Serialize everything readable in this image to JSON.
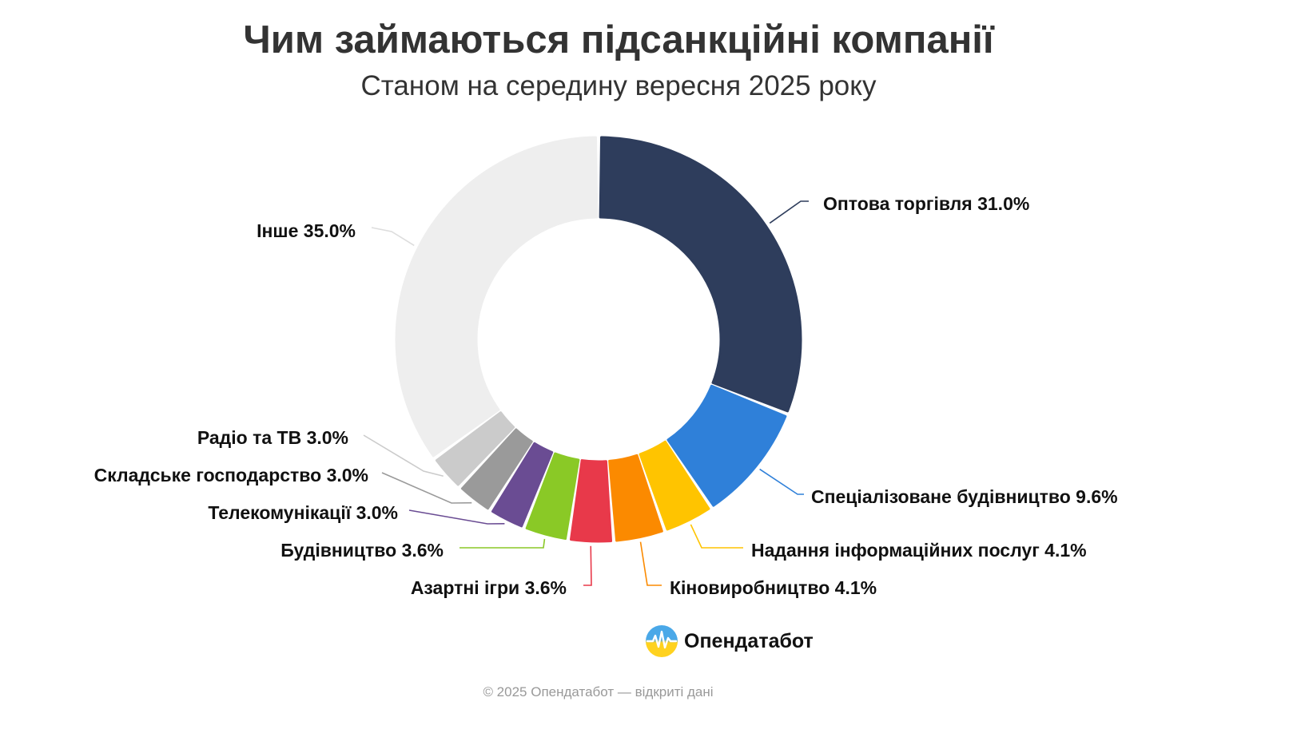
{
  "header": {
    "title": "Чим займаються підсанкційні компанії",
    "subtitle": "Станом на середину вересня 2025 року"
  },
  "chart_data": {
    "type": "pie",
    "variant": "donut",
    "title": "Чим займаються підсанкційні компанії",
    "subtitle": "Станом на середину вересня 2025 року",
    "value_unit": "%",
    "slices": [
      {
        "name": "Оптова торгівля",
        "value": 31.0,
        "label": "Оптова торгівля 31.0%",
        "color": "#2e3d5c",
        "label_side": "right"
      },
      {
        "name": "Спеціалізоване будівництво",
        "value": 9.6,
        "label": "Спеціалізоване будівництво 9.6%",
        "color": "#2f80d9",
        "label_side": "right"
      },
      {
        "name": "Надання інформаційних послуг",
        "value": 4.1,
        "label": "Надання інформаційних послуг 4.1%",
        "color": "#ffc400",
        "label_side": "right"
      },
      {
        "name": "Кіновиробництво",
        "value": 4.1,
        "label": "Кіновиробництво 4.1%",
        "color": "#fb8a00",
        "label_side": "right"
      },
      {
        "name": "Азартні ігри",
        "value": 3.6,
        "label": "Азартні ігри 3.6%",
        "color": "#e8394a",
        "label_side": "left"
      },
      {
        "name": "Будівництво",
        "value": 3.6,
        "label": "Будівництво 3.6%",
        "color": "#8ac926",
        "label_side": "left"
      },
      {
        "name": "Телекомунікації",
        "value": 3.0,
        "label": "Телекомунікації 3.0%",
        "color": "#6a4c93",
        "label_side": "left"
      },
      {
        "name": "Складське господарство",
        "value": 3.0,
        "label": "Складське господарство 3.0%",
        "color": "#9a9a9a",
        "label_side": "left"
      },
      {
        "name": "Радіо та ТВ",
        "value": 3.0,
        "label": "Радіо та ТВ 3.0%",
        "color": "#cbcbcb",
        "label_side": "left"
      },
      {
        "name": "Інше",
        "value": 35.0,
        "label": "Інше 35.0%",
        "color": "#eeeeee",
        "label_side": "left"
      }
    ],
    "start": "12 o'clock",
    "direction": "clockwise",
    "legend": "none"
  },
  "brand": {
    "name": "Опендатабот",
    "logo_icon": "opendatabot-logo-icon",
    "logo_colors": {
      "top": "#4aa8e8",
      "bottom": "#ffd21f"
    }
  },
  "footer": {
    "text": "© 2025 Опендатабот — відкриті дані"
  }
}
